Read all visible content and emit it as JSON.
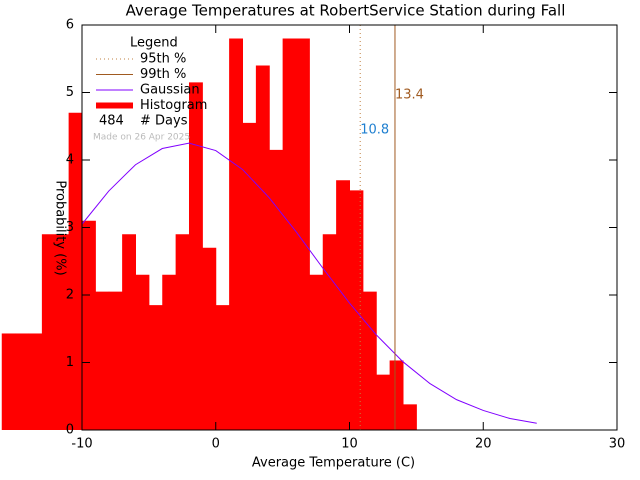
{
  "chart_data": {
    "type": "histogram",
    "title": "Average Temperatures at RobertService Station during Fall",
    "x_label": "Average Temperature (C)",
    "y_label": "Probability (%)",
    "bins": [
      -16,
      -15,
      -14,
      -13,
      -12,
      -11,
      -10,
      -9,
      -8,
      -7,
      -6,
      -5,
      -4,
      -3,
      -2,
      -1,
      0,
      1,
      2,
      3,
      4,
      5,
      6,
      7,
      8,
      9,
      10,
      11,
      12,
      13,
      14,
      15
    ],
    "values": [
      1.43,
      1.43,
      1.43,
      2.9,
      2.9,
      4.7,
      3.1,
      2.05,
      2.05,
      2.9,
      2.3,
      1.85,
      2.3,
      2.9,
      5.15,
      2.7,
      1.85,
      5.8,
      4.55,
      5.4,
      4.15,
      5.8,
      5.8,
      2.3,
      2.9,
      3.7,
      3.55,
      2.05,
      0.82,
      1.03,
      0.38
    ],
    "color": "#ff0000",
    "histogram_name": "Histogram",
    "xlim": [
      -10,
      30
    ],
    "ylim": [
      0,
      6
    ],
    "xticks": [
      -10,
      0,
      10,
      20,
      30
    ],
    "yticks": [
      0,
      1,
      2,
      3,
      4,
      5,
      6
    ],
    "gaussian": {
      "name": "Gaussian",
      "color": "#8000ff",
      "x": [
        -10,
        -8,
        -6,
        -4,
        -2,
        0,
        2,
        4,
        6,
        8,
        10,
        12,
        14,
        16,
        18,
        20,
        22,
        24
      ],
      "values": [
        3.05,
        3.54,
        3.93,
        4.17,
        4.25,
        4.14,
        3.86,
        3.44,
        2.94,
        2.4,
        1.88,
        1.41,
        1.01,
        0.69,
        0.45,
        0.29,
        0.17,
        0.1
      ]
    },
    "percentiles": [
      {
        "name": "95th %",
        "value": 10.8,
        "color": "#c08040",
        "label_color": "#1e7fd0",
        "style": "dotted"
      },
      {
        "name": "99th %",
        "value": 13.4,
        "color": "#a05a20",
        "label_color": "#a05a20",
        "style": "solid"
      }
    ],
    "legend": {
      "title": "Legend",
      "corner": "top-left"
    },
    "days": {
      "count": 484,
      "label": "# Days"
    },
    "note": "Made on 26 Apr 2025"
  }
}
